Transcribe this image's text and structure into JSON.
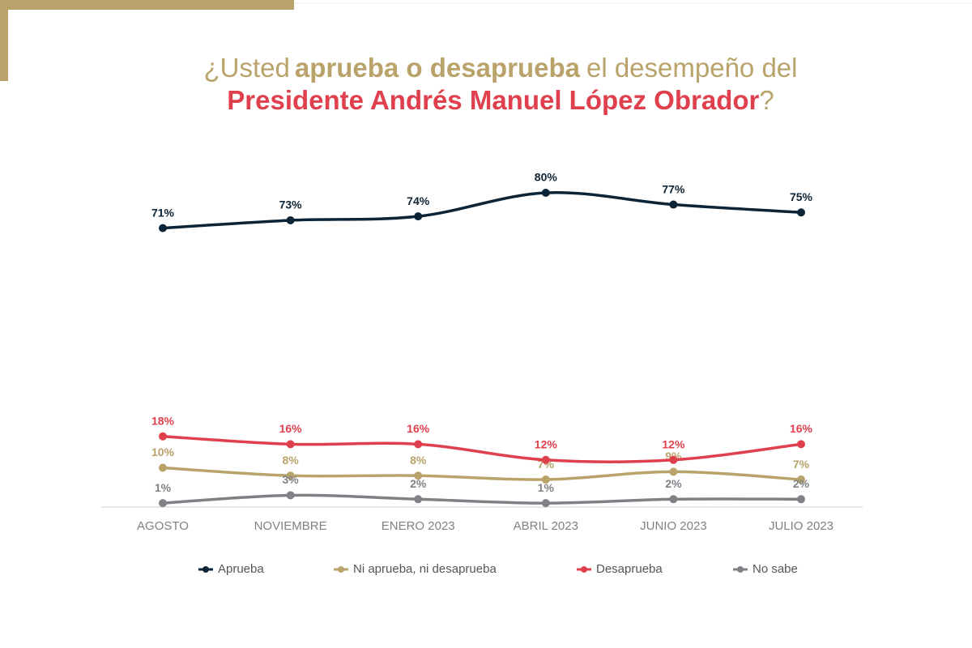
{
  "chart_data": {
    "type": "line",
    "title": [
      "¿Usted",
      "aprueba o desaprueba",
      "el desempeño del",
      "Presidente Andrés Manuel López Obrador",
      "?"
    ],
    "categories": [
      "AGOSTO",
      "NOVIEMBRE",
      "ENERO 2023",
      "ABRIL 2023",
      "JUNIO 2023",
      "JULIO 2023"
    ],
    "ylim": [
      0,
      80
    ],
    "series": [
      {
        "name": "Aprueba",
        "color": "#0d2436",
        "values": [
          71,
          73,
          74,
          80,
          77,
          75
        ],
        "value_labels": [
          "71%",
          "73%",
          "74%",
          "80%",
          "77%",
          "75%"
        ]
      },
      {
        "name": "Ni aprueba, ni desaprueba",
        "color": "#b9a36b",
        "values": [
          10,
          8,
          8,
          7,
          9,
          7
        ],
        "value_labels": [
          "10%",
          "8%",
          "8%",
          "7%",
          "9%",
          "7%"
        ]
      },
      {
        "name": "Desaprueba",
        "color": "#e0404e",
        "values": [
          18,
          16,
          16,
          12,
          12,
          16
        ],
        "value_labels": [
          "18%",
          "16%",
          "16%",
          "12%",
          "12%",
          "16%"
        ]
      },
      {
        "name": "No sabe",
        "color": "#7f8187",
        "values": [
          1,
          3,
          2,
          1,
          2,
          2
        ],
        "value_labels": [
          "1%",
          "3%",
          "2%",
          "1%",
          "2%",
          "2%"
        ]
      }
    ]
  }
}
